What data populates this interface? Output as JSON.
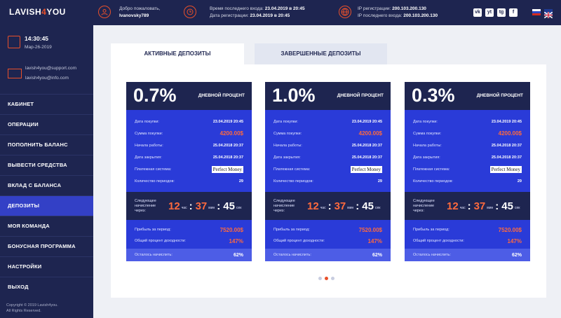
{
  "header": {
    "logo_left": "LAVISH",
    "logo_right": "YOU",
    "welcome_label": "Добро пожаловать,",
    "username": "Ivanovsky789",
    "last_login_label": "Время последнего входа:",
    "last_login_value": "23.04.2019 в 20:45",
    "reg_label": "Дата регистрации:",
    "reg_value": "23.04.2019 в 20:45",
    "ip_reg_label": "IP регистрации:",
    "ip_reg_value": "200.103.200.130",
    "ip_last_label": "IP последнего входа:",
    "ip_last_value": "200.103.200.130",
    "socials": [
      "vk",
      "yt",
      "tg",
      "f"
    ]
  },
  "sidebar": {
    "time": "14:30:45",
    "date": "Мар-26-2019",
    "email1": "lavish4you@support.com",
    "email2": "lavish4you@info.com",
    "items": [
      "КАБИНЕТ",
      "ОПЕРАЦИИ",
      "ПОПОЛНИТЬ БАЛАНС",
      "ВЫВЕСТИ СРЕДСТВА",
      "ВКЛАД С БАЛАНСА",
      "ДЕПОЗИТЫ",
      "МОЯ КОМАНДА",
      "БОНУСНАЯ ПРОГРАММА",
      "НАСТРОЙКИ",
      "ВЫХОД"
    ],
    "active_index": 5,
    "copyright_1": "Copyright © 2019 Lavish4you.",
    "copyright_2": "All Rights Reserved."
  },
  "tabs": {
    "active": "АКТИВНЫЕ ДЕПОЗИТЫ",
    "completed": "ЗАВЕРШЕННЫЕ ДЕПОЗИТЫ"
  },
  "labels": {
    "daily": "ДНЕВНОЙ ПРОЦЕНТ",
    "purchase_date": "Дата покупки:",
    "purchase_sum": "Сумма покупки:",
    "start": "Начала работы:",
    "close": "Дата закрытия:",
    "payment": "Платежная система:",
    "periods": "Количество периодов:",
    "next_1": "Следующее",
    "next_2": "начисление",
    "next_3": "через:",
    "hours": "час",
    "minutes": "мин",
    "seconds": "сек",
    "profit": "Прибыль за период:",
    "total_pct": "Общий процент доходности:",
    "remaining": "Осталось начислить:",
    "pm": "Perfect Money"
  },
  "cards": [
    {
      "pct": "0.7%",
      "purchase_date": "23.04.2019 20:45",
      "sum": "4200.00$",
      "start": "25.04.2018 20:37",
      "close": "25.04.2018 20:37",
      "periods": "29",
      "h": "12",
      "m": "37",
      "s": "45",
      "profit": "7520.00$",
      "total": "147%",
      "remaining": "62%"
    },
    {
      "pct": "1.0%",
      "purchase_date": "23.04.2019 20:45",
      "sum": "4200.00$",
      "start": "25.04.2018 20:37",
      "close": "25.04.2018 20:37",
      "periods": "29",
      "h": "12",
      "m": "37",
      "s": "45",
      "profit": "7520.00$",
      "total": "147%",
      "remaining": "62%"
    },
    {
      "pct": "0.3%",
      "purchase_date": "23.04.2019 20:45",
      "sum": "4200.00$",
      "start": "25.04.2018 20:37",
      "close": "25.04.2018 20:37",
      "periods": "29",
      "h": "12",
      "m": "37",
      "s": "45",
      "profit": "7520.00$",
      "total": "147%",
      "remaining": "62%"
    }
  ],
  "colors": {
    "accent": "#e8502a",
    "navy": "#1e2550",
    "blue": "#2a3bd8"
  }
}
